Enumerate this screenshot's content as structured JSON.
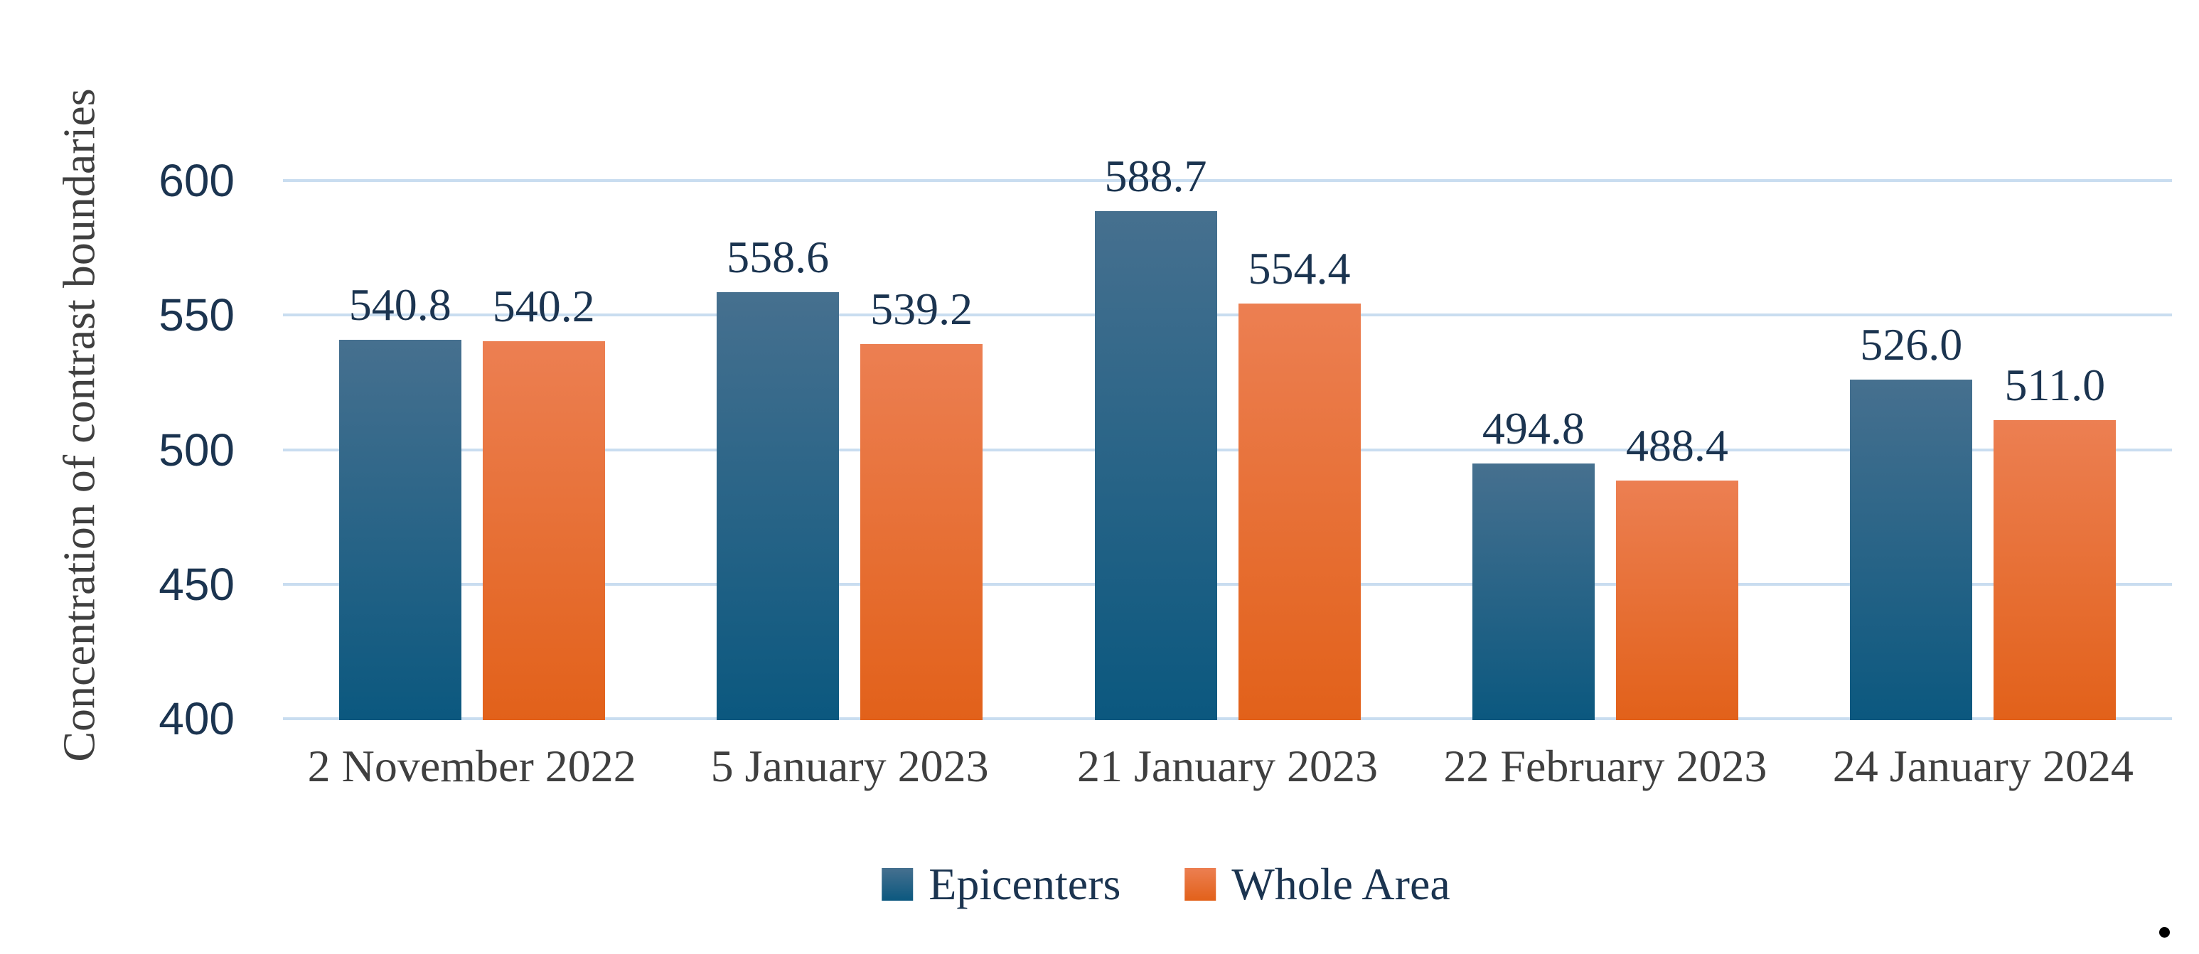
{
  "y_axis": {
    "title": "Concentration of contrast boundaries",
    "tick_labels": [
      "600",
      "550",
      "500",
      "450",
      "400"
    ],
    "tick_values": [
      600,
      550,
      500,
      450,
      400
    ]
  },
  "legend": {
    "items": [
      {
        "label": "Epicenters",
        "color_top": "#46708f",
        "color_bottom": "#0b587f"
      },
      {
        "label": "Whole Area",
        "color_top": "#ec7f52",
        "color_bottom": "#e2611a"
      }
    ],
    "position": "bottom"
  },
  "caption_period": ".",
  "colors": {
    "gridline": "#c9ddf0",
    "axis_tick_text": "#1b3450",
    "data_label_text": "#1b3450",
    "category_text": "#3f3f3f",
    "axis_title_text": "#3f3f3f",
    "epicenters_top": "#46708f",
    "epicenters_bottom": "#0b587f",
    "whole_area_top": "#ec7f52",
    "whole_area_bottom": "#e2611a"
  },
  "chart_data": {
    "type": "bar",
    "title": "",
    "categories": [
      "2 November 2022",
      "5 January 2023",
      "21 January 2023",
      "22 February 2023",
      "24 January 2024"
    ],
    "series": [
      {
        "name": "Epicenters",
        "values": [
          540.8,
          558.6,
          588.7,
          494.8,
          526.0
        ],
        "data_labels": [
          "540.8",
          "558.6",
          "588.7",
          "494.8",
          "526.0"
        ]
      },
      {
        "name": "Whole Area",
        "values": [
          540.2,
          539.2,
          554.4,
          488.4,
          511.0
        ],
        "data_labels": [
          "540.2",
          "539.2",
          "554.4",
          "488.4",
          "511.0"
        ]
      }
    ],
    "xlabel": "",
    "ylabel": "Concentration of contrast boundaries",
    "ylim": [
      400,
      620
    ],
    "ytick_step": 50,
    "grid": true,
    "legend_position": "bottom"
  }
}
